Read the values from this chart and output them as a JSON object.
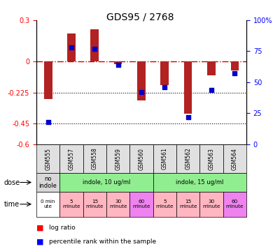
{
  "title": "GDS95 / 2768",
  "samples": [
    "GSM555",
    "GSM557",
    "GSM558",
    "GSM559",
    "GSM560",
    "GSM561",
    "GSM562",
    "GSM563",
    "GSM564"
  ],
  "log_ratio": [
    -0.27,
    0.2,
    0.23,
    -0.02,
    -0.28,
    -0.17,
    -0.38,
    -0.1,
    -0.065
  ],
  "percentile": [
    18,
    78,
    77,
    64,
    42,
    46,
    22,
    44,
    57
  ],
  "ylim_left": [
    -0.6,
    0.3
  ],
  "yticks_left": [
    0.3,
    0,
    -0.225,
    -0.45,
    -0.6
  ],
  "ytick_labels_left": [
    "0.3",
    "0",
    "-0.225",
    "-0.45",
    "-0.6"
  ],
  "ylim_right": [
    0,
    100
  ],
  "yticks_right": [
    100,
    75,
    50,
    25,
    0
  ],
  "ytick_labels_right": [
    "100%",
    "75",
    "50",
    "25",
    "0"
  ],
  "bar_color": "#b22222",
  "dot_color": "#0000cc",
  "hline_color": "#cc0000",
  "dose_labels": [
    "no\nindole",
    "indole, 10 ug/ml",
    "indole, 15 ug/ml"
  ],
  "dose_starts": [
    0,
    1,
    5
  ],
  "dose_ends": [
    1,
    5,
    9
  ],
  "dose_colors": [
    "#d8d8d8",
    "#90ee90",
    "#90ee90"
  ],
  "time_labels": [
    "0 min\nute",
    "5\nminute",
    "15\nminute",
    "30\nminute",
    "60\nminute",
    "5\nminute",
    "15\nminute",
    "30\nminute",
    "60\nminute"
  ],
  "time_colors": [
    "#ffffff",
    "#ffb6c1",
    "#ffb6c1",
    "#ffb6c1",
    "#ee82ee",
    "#ffb6c1",
    "#ffb6c1",
    "#ffb6c1",
    "#ee82ee"
  ],
  "legend_red": "log ratio",
  "legend_blue": "percentile rank within the sample"
}
